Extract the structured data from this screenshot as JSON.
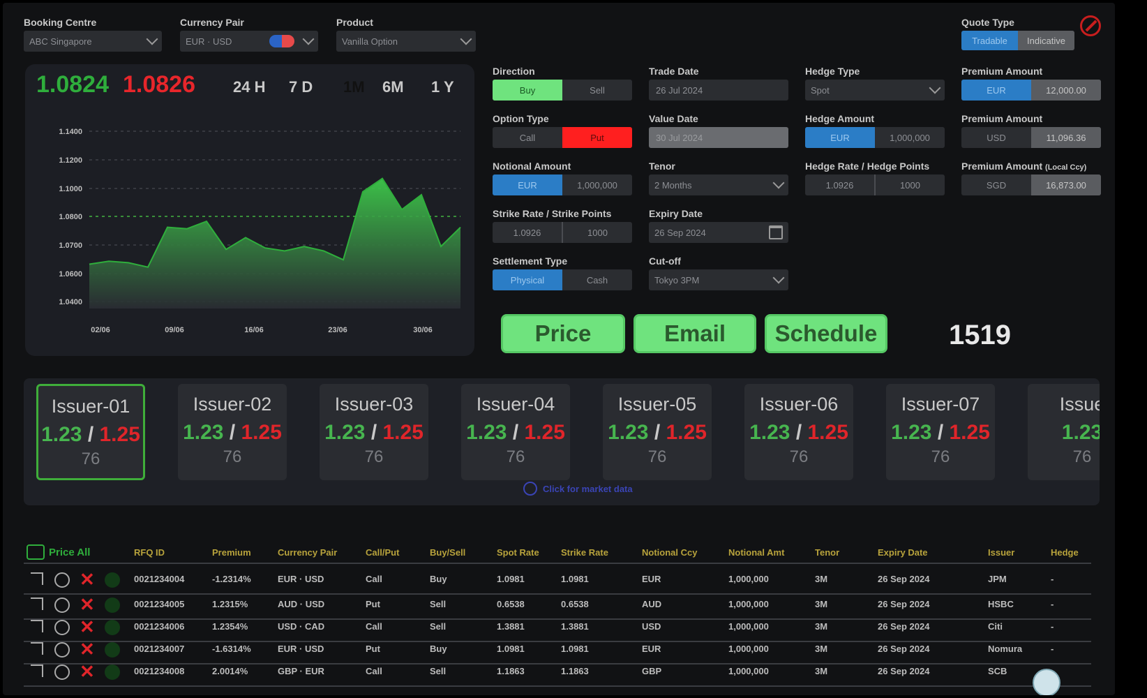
{
  "header": {
    "booking_centre": {
      "label": "Booking Centre",
      "value": "ABC Singapore"
    },
    "currency_pair": {
      "label": "Currency Pair",
      "value": "EUR · USD"
    },
    "product": {
      "label": "Product",
      "value": "Vanilla Option"
    },
    "quote_type": {
      "label": "Quote Type",
      "options": [
        "Tradable",
        "Indicative"
      ],
      "selected": "Tradable"
    }
  },
  "chart": {
    "bid": "1.0824",
    "ask": "1.0826",
    "ranges": [
      "24 H",
      "7 D",
      "1M",
      "6M",
      "1 Y"
    ],
    "selected_range": "1M",
    "colors": {
      "bid": "#2fae3c",
      "ask": "#e8262b"
    }
  },
  "chart_data": {
    "type": "area",
    "x_ticks": [
      "02/06",
      "09/06",
      "16/06",
      "23/06",
      "30/06"
    ],
    "y_ticks": [
      "1.1400",
      "1.1200",
      "1.1000",
      "1.0800",
      "1.0700",
      "1.0600",
      "1.0400"
    ],
    "reference_line": "1.0800",
    "ylim": [
      1.03,
      1.15
    ],
    "values": [
      1.06,
      1.062,
      1.061,
      1.058,
      1.085,
      1.084,
      1.089,
      1.07,
      1.078,
      1.071,
      1.069,
      1.072,
      1.069,
      1.063,
      1.109,
      1.118,
      1.097,
      1.107,
      1.072,
      1.085
    ],
    "grid": true,
    "legend": "none",
    "color": "#2fae3c"
  },
  "form": {
    "direction": {
      "label": "Direction",
      "options": [
        "Buy",
        "Sell"
      ],
      "selected": "Buy"
    },
    "option_type": {
      "label": "Option Type",
      "options": [
        "Call",
        "Put"
      ],
      "selected": "Put"
    },
    "notional_amount": {
      "label": "Notional Amount",
      "ccy": "EUR",
      "value": "1,000,000"
    },
    "strike": {
      "label": "Strike Rate / Strike Points",
      "rate": "1.0926",
      "points": "1000"
    },
    "settlement_type": {
      "label": "Settlement Type",
      "options": [
        "Physical",
        "Cash"
      ],
      "selected": "Physical"
    },
    "trade_date": {
      "label": "Trade Date",
      "value": "26 Jul 2024"
    },
    "value_date": {
      "label": "Value Date",
      "value": "30 Jul 2024"
    },
    "tenor": {
      "label": "Tenor",
      "value": "2 Months"
    },
    "expiry_date": {
      "label": "Expiry Date",
      "value": "26 Sep 2024"
    },
    "cut_off": {
      "label": "Cut-off",
      "value": "Tokyo 3PM"
    },
    "hedge_type": {
      "label": "Hedge Type",
      "value": "Spot"
    },
    "hedge_amount": {
      "label": "Hedge Amount",
      "ccy": "EUR",
      "value": "1,000,000"
    },
    "hedge_rate": {
      "label": "Hedge Rate / Hedge Points",
      "rate": "1.0926",
      "points": "1000"
    },
    "premium_amount_1": {
      "label": "Premium Amount",
      "ccy": "EUR",
      "value": "12,000.00"
    },
    "premium_amount_2": {
      "label": "Premium Amount",
      "ccy": "USD",
      "value": "11,096.36"
    },
    "premium_amount_local": {
      "label": "Premium Amount",
      "label_suffix": "(Local Ccy)",
      "ccy": "SGD",
      "value": "16,873.00"
    }
  },
  "actions": {
    "price": "Price",
    "email": "Email",
    "schedule": "Schedule",
    "counter": "1519"
  },
  "issuers": [
    {
      "name": "Issuer-01",
      "bid": "1.23",
      "ask": "1.25",
      "count": "76",
      "selected": true
    },
    {
      "name": "Issuer-02",
      "bid": "1.23",
      "ask": "1.25",
      "count": "76"
    },
    {
      "name": "Issuer-03",
      "bid": "1.23",
      "ask": "1.25",
      "count": "76"
    },
    {
      "name": "Issuer-04",
      "bid": "1.23",
      "ask": "1.25",
      "count": "76"
    },
    {
      "name": "Issuer-05",
      "bid": "1.23",
      "ask": "1.25",
      "count": "76"
    },
    {
      "name": "Issuer-06",
      "bid": "1.23",
      "ask": "1.25",
      "count": "76"
    },
    {
      "name": "Issuer-07",
      "bid": "1.23",
      "ask": "1.25",
      "count": "76"
    },
    {
      "name": "Issue",
      "bid": "1.23",
      "ask": "",
      "count": "76"
    }
  ],
  "market_data_link": "Click for market data",
  "table": {
    "price_all": "Price All",
    "headers": [
      "RFQ ID",
      "Premium",
      "Currency Pair",
      "Call/Put",
      "Buy/Sell",
      "Spot Rate",
      "Strike Rate",
      "Notional Ccy",
      "Notional Amt",
      "Tenor",
      "Expiry Date",
      "Issuer",
      "Hedge"
    ],
    "rows": [
      [
        "0021234004",
        "-1.2314%",
        "EUR · USD",
        "Call",
        "Buy",
        "1.0981",
        "1.0981",
        "EUR",
        "1,000,000",
        "3M",
        "26 Sep 2024",
        "JPM",
        "-"
      ],
      [
        "0021234005",
        "1.2315%",
        "AUD · USD",
        "Put",
        "Sell",
        "0.6538",
        "0.6538",
        "AUD",
        "1,000,000",
        "3M",
        "26 Sep 2024",
        "HSBC",
        "-"
      ],
      [
        "0021234006",
        "1.2354%",
        "USD · CAD",
        "Call",
        "Sell",
        "1.3881",
        "1.3881",
        "USD",
        "1,000,000",
        "3M",
        "26 Sep 2024",
        "Citi",
        "-"
      ],
      [
        "0021234007",
        "-1.6314%",
        "EUR · USD",
        "Put",
        "Buy",
        "1.0981",
        "1.0981",
        "EUR",
        "1,000,000",
        "3M",
        "26 Sep 2024",
        "Nomura",
        "-"
      ],
      [
        "0021234008",
        "2.0014%",
        "GBP · EUR",
        "Call",
        "Sell",
        "1.1863",
        "1.1863",
        "GBP",
        "1,000,000",
        "3M",
        "26 Sep 2024",
        "SCB",
        ""
      ]
    ]
  },
  "colors": {
    "accent_green": "#6fe37e",
    "accent_red": "#ff1f1f",
    "accent_blue": "#2b7dc6",
    "header_gold": "#b8a33c"
  }
}
